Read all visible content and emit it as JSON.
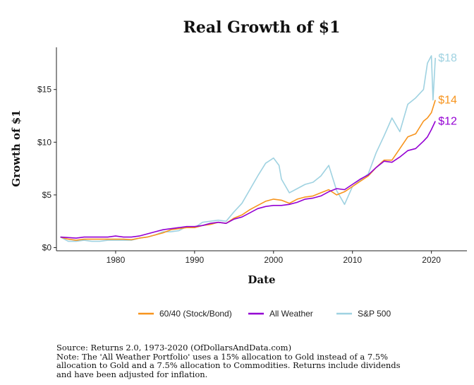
{
  "chart_data": {
    "type": "line",
    "title": "Real Growth of $1",
    "xlabel": "Date",
    "ylabel": "Growth of $1",
    "xlim": [
      1972.5,
      2024.5
    ],
    "ylim": [
      -0.3,
      19
    ],
    "x_ticks": [
      1980,
      1990,
      2000,
      2010,
      2020
    ],
    "x_tick_labels": [
      "1980",
      "1990",
      "2000",
      "2010",
      "2020"
    ],
    "y_ticks": [
      0,
      5,
      10,
      15
    ],
    "y_tick_labels": [
      "$0",
      "$5",
      "$10",
      "$15"
    ],
    "grid": false,
    "legend": "bottom",
    "series": [
      {
        "name": "60/40 (Stock/Bond)",
        "color": "#F7941D",
        "end_label": "$14",
        "x": [
          1973,
          1974,
          1975,
          1976,
          1977,
          1978,
          1979,
          1980,
          1981,
          1982,
          1983,
          1984,
          1985,
          1986,
          1987,
          1988,
          1989,
          1990,
          1991,
          1992,
          1993,
          1994,
          1995,
          1996,
          1997,
          1998,
          1999,
          2000,
          2001,
          2002,
          2003,
          2004,
          2005,
          2006,
          2007,
          2008,
          2009,
          2010,
          2011,
          2012,
          2013,
          2014,
          2015,
          2016,
          2017,
          2018,
          2019,
          2019.5,
          2020,
          2020.5
        ],
        "values": [
          1.0,
          0.8,
          0.7,
          0.8,
          0.8,
          0.8,
          0.8,
          0.8,
          0.8,
          0.75,
          0.9,
          1.0,
          1.2,
          1.4,
          1.7,
          1.8,
          1.9,
          1.9,
          2.1,
          2.2,
          2.4,
          2.3,
          2.8,
          3.1,
          3.6,
          4.0,
          4.4,
          4.6,
          4.5,
          4.2,
          4.6,
          4.8,
          4.9,
          5.2,
          5.5,
          5.0,
          5.3,
          5.8,
          6.3,
          6.8,
          7.6,
          8.3,
          8.3,
          9.4,
          10.5,
          10.8,
          12.0,
          12.3,
          12.8,
          14.0
        ]
      },
      {
        "name": "All Weather",
        "color": "#9400D3",
        "end_label": "$12",
        "x": [
          1973,
          1974,
          1975,
          1976,
          1977,
          1978,
          1979,
          1980,
          1981,
          1982,
          1983,
          1984,
          1985,
          1986,
          1987,
          1988,
          1989,
          1990,
          1991,
          1992,
          1993,
          1994,
          1995,
          1996,
          1997,
          1998,
          1999,
          2000,
          2001,
          2002,
          2003,
          2004,
          2005,
          2006,
          2007,
          2008,
          2009,
          2010,
          2011,
          2012,
          2013,
          2014,
          2015,
          2016,
          2017,
          2018,
          2019,
          2019.5,
          2020,
          2020.5
        ],
        "values": [
          1.0,
          0.95,
          0.9,
          1.0,
          1.0,
          1.0,
          1.0,
          1.1,
          1.0,
          1.0,
          1.1,
          1.3,
          1.5,
          1.7,
          1.8,
          1.9,
          2.0,
          2.0,
          2.1,
          2.3,
          2.4,
          2.3,
          2.7,
          2.9,
          3.3,
          3.7,
          3.9,
          4.0,
          4.0,
          4.1,
          4.3,
          4.6,
          4.7,
          4.9,
          5.3,
          5.6,
          5.5,
          6.0,
          6.5,
          6.9,
          7.6,
          8.2,
          8.1,
          8.6,
          9.2,
          9.4,
          10.1,
          10.5,
          11.2,
          12.0
        ]
      },
      {
        "name": "S&P 500",
        "color": "#9FD2E1",
        "end_label": "$18",
        "x": [
          1973,
          1974,
          1975,
          1976,
          1977,
          1978,
          1979,
          1980,
          1981,
          1982,
          1983,
          1984,
          1985,
          1986,
          1987,
          1988,
          1989,
          1990,
          1991,
          1992,
          1993,
          1994,
          1995,
          1996,
          1997,
          1998,
          1999,
          2000,
          2000.7,
          2001,
          2002,
          2003,
          2004,
          2005,
          2006,
          2007,
          2008,
          2009,
          2010,
          2011,
          2012,
          2013,
          2014,
          2015,
          2016,
          2017,
          2018,
          2019,
          2019.5,
          2020,
          2020.2,
          2020.5
        ],
        "values": [
          1.0,
          0.6,
          0.6,
          0.7,
          0.6,
          0.6,
          0.7,
          0.7,
          0.7,
          0.7,
          0.9,
          1.0,
          1.2,
          1.5,
          1.5,
          1.6,
          2.0,
          1.9,
          2.4,
          2.5,
          2.6,
          2.5,
          3.4,
          4.2,
          5.5,
          6.8,
          8.0,
          8.5,
          7.8,
          6.5,
          5.2,
          5.6,
          6.0,
          6.2,
          6.8,
          7.8,
          5.4,
          4.1,
          5.8,
          6.4,
          7.0,
          9.0,
          10.6,
          12.3,
          11.0,
          13.6,
          14.2,
          15.0,
          17.5,
          18.2,
          14.0,
          18.0
        ]
      }
    ]
  },
  "legend": {
    "items": [
      {
        "label": "60/40 (Stock/Bond)",
        "color": "#F7941D"
      },
      {
        "label": "All Weather",
        "color": "#9400D3"
      },
      {
        "label": "S&P 500",
        "color": "#9FD2E1"
      }
    ]
  },
  "source": {
    "lines": [
      "Source:  Returns 2.0, 1973-2020 (OfDollarsAndData.com)",
      "Note: The 'All Weather Portfolio' uses a 15% allocation to Gold instead of a 7.5%",
      "allocation to Gold and a 7.5% allocation to Commodities. Returns include dividends",
      "and have been adjusted for inflation."
    ]
  }
}
